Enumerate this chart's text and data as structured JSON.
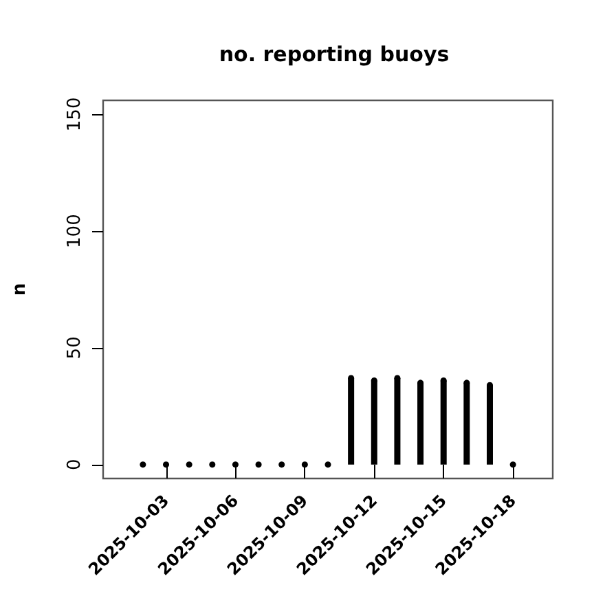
{
  "chart_data": {
    "type": "lollipop",
    "marker": "circle",
    "title": "no. reporting buoys",
    "ylabel": "n",
    "x": [
      "2025-10-02",
      "2025-10-03",
      "2025-10-04",
      "2025-10-05",
      "2025-10-06",
      "2025-10-07",
      "2025-10-08",
      "2025-10-09",
      "2025-10-10",
      "2025-10-11",
      "2025-10-12",
      "2025-10-13",
      "2025-10-14",
      "2025-10-15",
      "2025-10-16",
      "2025-10-17",
      "2025-10-18"
    ],
    "values": [
      0,
      0,
      0,
      0,
      0,
      0,
      0,
      0,
      0,
      37,
      36,
      37,
      35,
      36,
      35,
      34,
      0
    ],
    "color": "#000000",
    "xlim": [
      "2025-09-30T06:43",
      "2025-10-19T17:17"
    ],
    "xticks": [
      {
        "value": "2025-10-03",
        "label": "2025-10-03"
      },
      {
        "value": "2025-10-06",
        "label": "2025-10-06"
      },
      {
        "value": "2025-10-09",
        "label": "2025-10-09"
      },
      {
        "value": "2025-10-12",
        "label": "2025-10-12"
      },
      {
        "value": "2025-10-15",
        "label": "2025-10-15"
      },
      {
        "value": "2025-10-18",
        "label": "2025-10-18"
      }
    ],
    "ylim": [
      -6,
      156
    ],
    "yticks": [
      0,
      50,
      100,
      150
    ],
    "grid": false
  }
}
